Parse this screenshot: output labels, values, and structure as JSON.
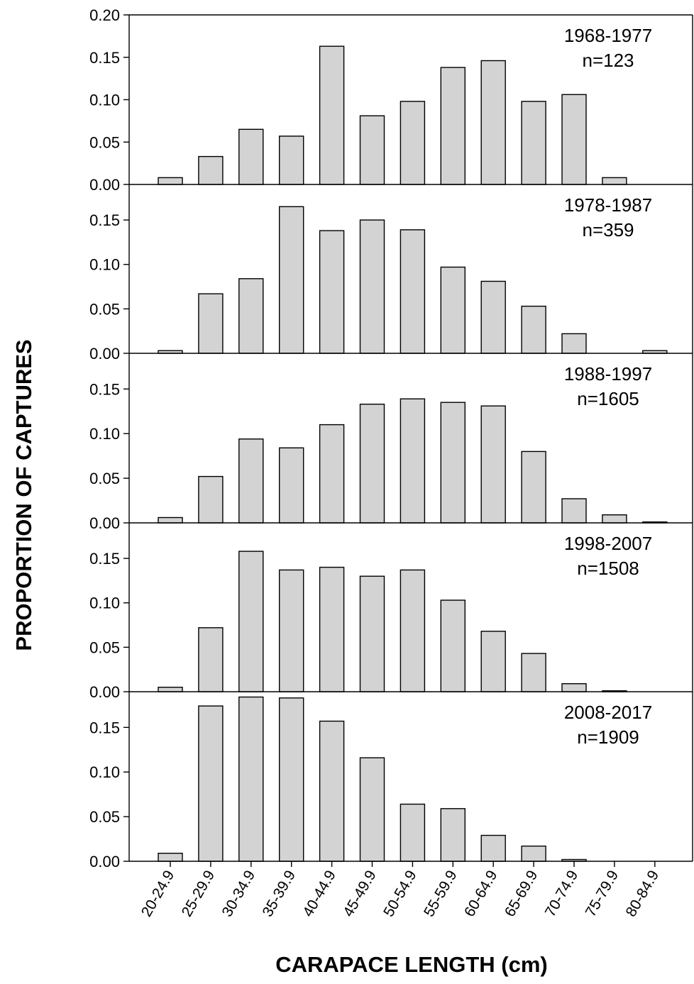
{
  "chart_data": {
    "type": "bar",
    "xlabel": "CARAPACE LENGTH (cm)",
    "ylabel": "PROPORTION OF CAPTURES",
    "categories": [
      "20-24.9",
      "25-29.9",
      "30-34.9",
      "35-39.9",
      "40-44.9",
      "45-49.9",
      "50-54.9",
      "55-59.9",
      "60-64.9",
      "65-69.9",
      "70-74.9",
      "75-79.9",
      "80-84.9"
    ],
    "panels": [
      {
        "period": "1968-1977",
        "n": "n=123",
        "ylim": [
          0,
          0.2
        ],
        "ticks": [
          "0.00",
          "0.05",
          "0.10",
          "0.15",
          "0.20"
        ],
        "values": [
          0.008,
          0.033,
          0.065,
          0.057,
          0.163,
          0.081,
          0.098,
          0.138,
          0.146,
          0.098,
          0.106,
          0.008,
          0.0
        ]
      },
      {
        "period": "1978-1987",
        "n": "n=359",
        "ylim": [
          0,
          0.19
        ],
        "ticks": [
          "0.00",
          "0.05",
          "0.10",
          "0.15"
        ],
        "values": [
          0.003,
          0.067,
          0.084,
          0.165,
          0.138,
          0.15,
          0.139,
          0.097,
          0.081,
          0.053,
          0.022,
          0.0,
          0.003
        ]
      },
      {
        "period": "1988-1997",
        "n": "n=1605",
        "ylim": [
          0,
          0.19
        ],
        "ticks": [
          "0.00",
          "0.05",
          "0.10",
          "0.15"
        ],
        "values": [
          0.006,
          0.052,
          0.094,
          0.084,
          0.11,
          0.133,
          0.139,
          0.135,
          0.131,
          0.08,
          0.027,
          0.009,
          0.001
        ]
      },
      {
        "period": "1998-2007",
        "n": "n=1508",
        "ylim": [
          0,
          0.19
        ],
        "ticks": [
          "0.00",
          "0.05",
          "0.10",
          "0.15"
        ],
        "values": [
          0.005,
          0.072,
          0.158,
          0.137,
          0.14,
          0.13,
          0.137,
          0.103,
          0.068,
          0.043,
          0.009,
          0.001,
          0.0
        ]
      },
      {
        "period": "2008-2017",
        "n": "n=1909",
        "ylim": [
          0,
          0.19
        ],
        "ticks": [
          "0.00",
          "0.05",
          "0.10",
          "0.15"
        ],
        "values": [
          0.009,
          0.174,
          0.184,
          0.183,
          0.157,
          0.116,
          0.064,
          0.059,
          0.029,
          0.017,
          0.002,
          0.0,
          0.0
        ]
      }
    ]
  }
}
